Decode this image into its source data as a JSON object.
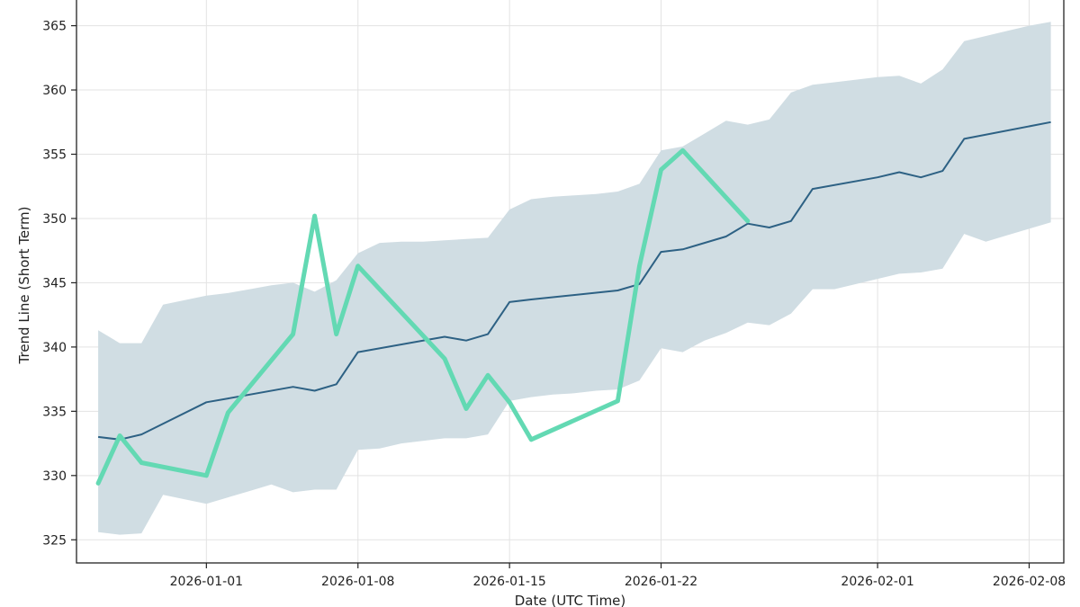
{
  "chart_data": {
    "type": "line",
    "title": "",
    "xlabel": "Date (UTC Time)",
    "ylabel": "Trend Line (Short Term)",
    "xlim": [
      "2025-12-26",
      "2026-02-09.6"
    ],
    "ylim": [
      323.2,
      367.0
    ],
    "grid": true,
    "yticks": [
      325,
      330,
      335,
      340,
      345,
      350,
      355,
      360,
      365
    ],
    "xticks": [
      "2026-01-01",
      "2026-01-08",
      "2026-01-15",
      "2026-01-22",
      "2026-02-01",
      "2026-02-08"
    ],
    "colors": {
      "trend": "#2d6184",
      "band": "#d0dde3",
      "actual": "#63d9b3",
      "grid": "#e3e3e3",
      "axis": "#222222"
    },
    "series": [
      {
        "role": "band",
        "x": [
          "2025-12-27",
          "2025-12-28",
          "2025-12-29",
          "2025-12-30",
          "2026-01-01",
          "2026-01-02",
          "2026-01-03",
          "2026-01-04",
          "2026-01-05",
          "2026-01-06",
          "2026-01-07",
          "2026-01-08",
          "2026-01-09",
          "2026-01-10",
          "2026-01-11",
          "2026-01-12",
          "2026-01-13",
          "2026-01-14",
          "2026-01-15",
          "2026-01-16",
          "2026-01-17",
          "2026-01-18",
          "2026-01-19",
          "2026-01-20",
          "2026-01-21",
          "2026-01-22",
          "2026-01-23",
          "2026-01-24",
          "2026-01-25",
          "2026-01-26",
          "2026-01-27",
          "2026-01-28",
          "2026-01-29",
          "2026-01-30",
          "2026-01-31",
          "2026-02-01",
          "2026-02-02",
          "2026-02-03",
          "2026-02-04",
          "2026-02-05",
          "2026-02-06",
          "2026-02-07",
          "2026-02-08",
          "2026-02-09"
        ],
        "upper": [
          341.3,
          340.3,
          340.3,
          343.3,
          344.0,
          344.2,
          344.5,
          344.8,
          345.0,
          344.3,
          345.2,
          347.3,
          348.1,
          348.2,
          348.2,
          348.3,
          348.4,
          348.5,
          350.7,
          351.5,
          351.7,
          351.8,
          351.9,
          352.1,
          352.7,
          355.3,
          355.6,
          356.6,
          357.6,
          357.3,
          357.7,
          359.8,
          360.4,
          360.6,
          360.8,
          361.0,
          361.1,
          360.5,
          361.6,
          363.8,
          364.2,
          364.6,
          365.0,
          365.3
        ],
        "lower": [
          325.6,
          325.4,
          325.5,
          328.5,
          327.8,
          328.3,
          328.8,
          329.3,
          328.7,
          328.9,
          328.9,
          332.0,
          332.1,
          332.5,
          332.7,
          332.9,
          332.9,
          333.2,
          335.8,
          336.1,
          336.3,
          336.4,
          336.6,
          336.7,
          337.4,
          339.9,
          339.6,
          340.5,
          341.1,
          341.9,
          341.7,
          342.6,
          344.5,
          344.5,
          344.9,
          345.3,
          345.7,
          345.8,
          346.1,
          348.8,
          348.2,
          348.7,
          349.2,
          349.7
        ]
      },
      {
        "role": "trend",
        "x": [
          "2025-12-27",
          "2025-12-28",
          "2025-12-29",
          "2026-01-01",
          "2026-01-02",
          "2026-01-05",
          "2026-01-06",
          "2026-01-07",
          "2026-01-08",
          "2026-01-12",
          "2026-01-13",
          "2026-01-14",
          "2026-01-15",
          "2026-01-16",
          "2026-01-20",
          "2026-01-21",
          "2026-01-22",
          "2026-01-23",
          "2026-01-25",
          "2026-01-26",
          "2026-01-27",
          "2026-01-28",
          "2026-01-29",
          "2026-02-01",
          "2026-02-02",
          "2026-02-03",
          "2026-02-04",
          "2026-02-05",
          "2026-02-09"
        ],
        "y": [
          333.0,
          332.8,
          333.2,
          335.7,
          336.0,
          336.9,
          336.6,
          337.1,
          339.6,
          340.8,
          340.5,
          341.0,
          343.5,
          343.7,
          344.4,
          344.9,
          347.4,
          347.6,
          348.6,
          349.6,
          349.3,
          349.8,
          352.3,
          353.2,
          353.6,
          353.2,
          353.7,
          356.2,
          357.5
        ]
      },
      {
        "role": "actual",
        "x": [
          "2025-12-27",
          "2025-12-28",
          "2025-12-29",
          "2026-01-01",
          "2026-01-02",
          "2026-01-05",
          "2026-01-06",
          "2026-01-07",
          "2026-01-08",
          "2026-01-12",
          "2026-01-13",
          "2026-01-14",
          "2026-01-15",
          "2026-01-16",
          "2026-01-20",
          "2026-01-21",
          "2026-01-22",
          "2026-01-23",
          "2026-01-26"
        ],
        "y": [
          329.4,
          333.1,
          331.0,
          330.0,
          334.9,
          341.0,
          350.2,
          341.0,
          346.3,
          339.1,
          335.2,
          337.8,
          335.7,
          332.8,
          335.8,
          346.3,
          353.8,
          355.3,
          349.8
        ]
      }
    ]
  }
}
